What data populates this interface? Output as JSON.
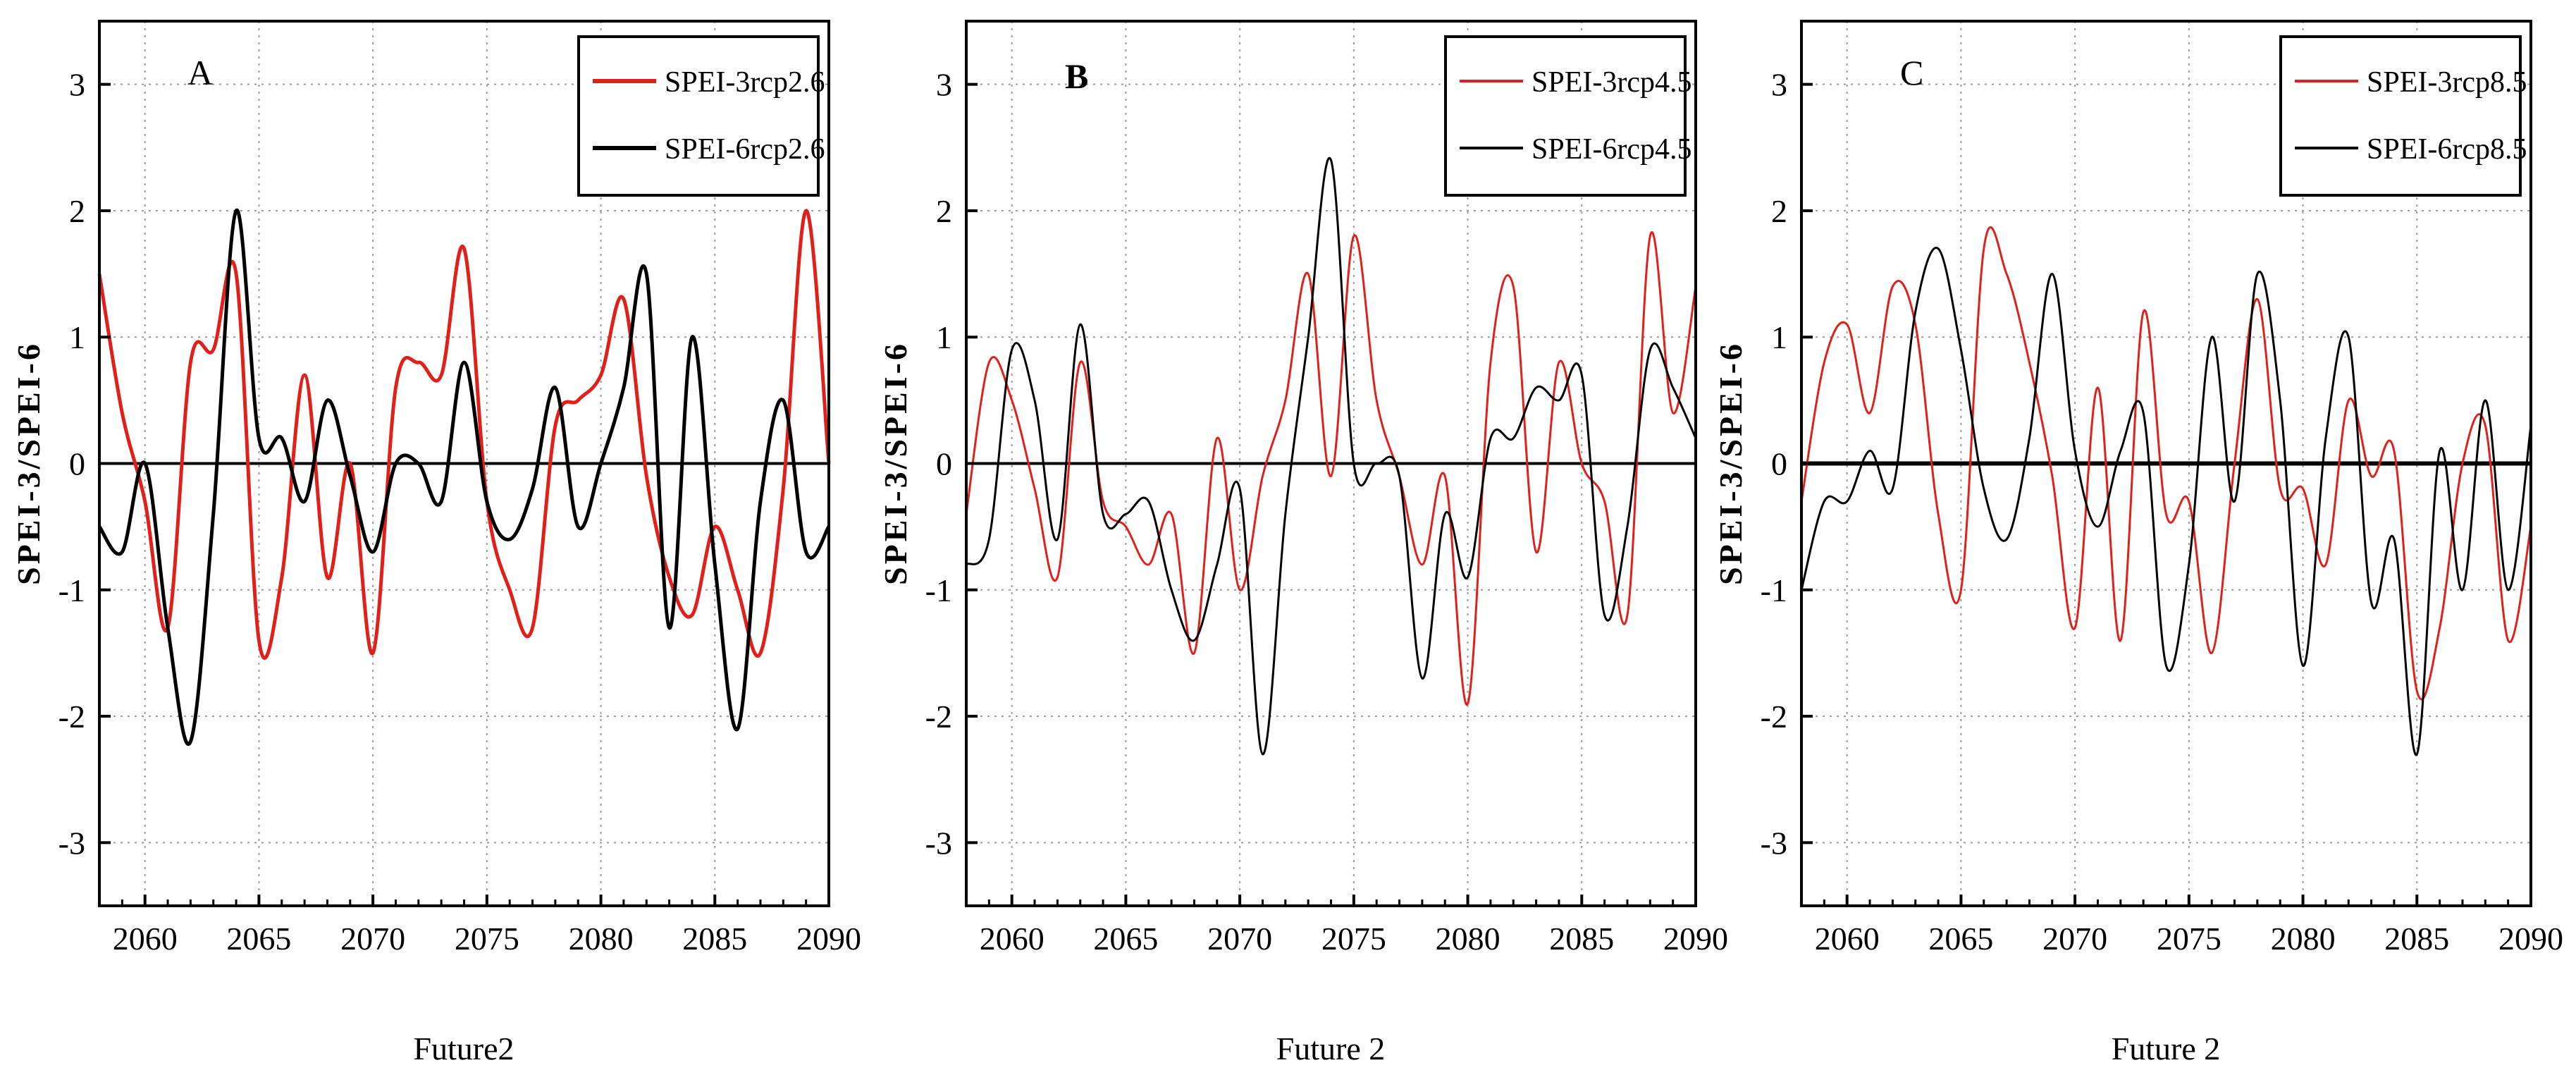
{
  "chart_data": [
    {
      "type": "line",
      "panel_label": "A",
      "xlabel": "Future2",
      "ylabel": "SPEI-3/SPEI-6",
      "xlim": [
        2058,
        2090
      ],
      "ylim": [
        -3.5,
        3.5
      ],
      "xticks": [
        2060,
        2065,
        2070,
        2075,
        2080,
        2085,
        2090
      ],
      "yticks": [
        -3,
        -2,
        -1,
        0,
        1,
        2,
        3
      ],
      "grid": true,
      "legend_position": "top-right",
      "series": [
        {
          "name": "SPEI-3rcp2.6",
          "color": "#e0201a",
          "x": [
            2058,
            2059,
            2060,
            2061,
            2062,
            2063,
            2064,
            2065,
            2066,
            2067,
            2068,
            2069,
            2070,
            2071,
            2072,
            2073,
            2074,
            2075,
            2076,
            2077,
            2078,
            2079,
            2080,
            2081,
            2082,
            2083,
            2084,
            2085,
            2086,
            2087,
            2088,
            2089,
            2090
          ],
          "y": [
            1.5,
            0.4,
            -0.3,
            -1.3,
            0.8,
            0.9,
            1.5,
            -1.4,
            -0.9,
            0.7,
            -0.9,
            0.0,
            -1.5,
            0.6,
            0.8,
            0.7,
            1.7,
            -0.3,
            -1.0,
            -1.3,
            0.3,
            0.5,
            0.7,
            1.3,
            -0.1,
            -0.9,
            -1.2,
            -0.5,
            -1.0,
            -1.5,
            -0.2,
            2.0,
            0.0
          ]
        },
        {
          "name": "SPEI-6rcp2.6",
          "color": "#000000",
          "x": [
            2058,
            2059,
            2060,
            2061,
            2062,
            2063,
            2064,
            2065,
            2066,
            2067,
            2068,
            2069,
            2070,
            2071,
            2072,
            2073,
            2074,
            2075,
            2076,
            2077,
            2078,
            2079,
            2080,
            2081,
            2082,
            2083,
            2084,
            2085,
            2086,
            2087,
            2088,
            2089,
            2090
          ],
          "y": [
            -0.5,
            -0.7,
            0.0,
            -1.3,
            -2.2,
            -0.4,
            2.0,
            0.2,
            0.2,
            -0.3,
            0.5,
            -0.1,
            -0.7,
            0.0,
            0.0,
            -0.3,
            0.8,
            -0.3,
            -0.6,
            -0.2,
            0.6,
            -0.5,
            0.0,
            0.6,
            1.5,
            -1.3,
            1.0,
            -0.8,
            -2.1,
            -0.3,
            0.5,
            -0.7,
            -0.5
          ]
        }
      ]
    },
    {
      "type": "line",
      "panel_label": "B",
      "xlabel": "Future 2",
      "ylabel": "SPEI-3/SPEI-6",
      "xlim": [
        2058,
        2090
      ],
      "ylim": [
        -3.5,
        3.5
      ],
      "xticks": [
        2060,
        2065,
        2070,
        2075,
        2080,
        2085,
        2090
      ],
      "yticks": [
        -3,
        -2,
        -1,
        0,
        1,
        2,
        3
      ],
      "grid": true,
      "legend_position": "top-right",
      "series": [
        {
          "name": "SPEI-3rcp4.5",
          "color": "#e0201a",
          "x": [
            2058,
            2059,
            2060,
            2061,
            2062,
            2063,
            2064,
            2065,
            2066,
            2067,
            2068,
            2069,
            2070,
            2071,
            2072,
            2073,
            2074,
            2075,
            2076,
            2077,
            2078,
            2079,
            2080,
            2081,
            2082,
            2083,
            2084,
            2085,
            2086,
            2087,
            2088,
            2089,
            2090
          ],
          "y": [
            -0.4,
            0.8,
            0.5,
            -0.2,
            -0.9,
            0.8,
            -0.3,
            -0.5,
            -0.8,
            -0.4,
            -1.5,
            0.2,
            -1.0,
            -0.1,
            0.5,
            1.5,
            -0.1,
            1.8,
            0.5,
            -0.1,
            -0.8,
            -0.1,
            -1.9,
            0.8,
            1.4,
            -0.7,
            0.8,
            0.0,
            -0.3,
            -1.2,
            1.8,
            0.4,
            1.4
          ]
        },
        {
          "name": "SPEI-6rcp4.5",
          "color": "#000000",
          "x": [
            2058,
            2059,
            2060,
            2061,
            2062,
            2063,
            2064,
            2065,
            2066,
            2067,
            2068,
            2069,
            2070,
            2071,
            2072,
            2073,
            2074,
            2075,
            2076,
            2077,
            2078,
            2079,
            2080,
            2081,
            2082,
            2083,
            2084,
            2085,
            2086,
            2087,
            2088,
            2089,
            2090
          ],
          "y": [
            -0.8,
            -0.6,
            0.9,
            0.5,
            -0.6,
            1.1,
            -0.4,
            -0.4,
            -0.3,
            -1.0,
            -1.4,
            -0.8,
            -0.2,
            -2.3,
            -0.4,
            1.0,
            2.4,
            0.0,
            0.0,
            -0.1,
            -1.7,
            -0.4,
            -0.9,
            0.2,
            0.2,
            0.6,
            0.5,
            0.7,
            -1.2,
            -0.5,
            0.9,
            0.6,
            0.2
          ]
        }
      ]
    },
    {
      "type": "line",
      "panel_label": "C",
      "xlabel": "Future 2",
      "ylabel": "SPEI-3/SPEI-6",
      "xlim": [
        2058,
        2090
      ],
      "ylim": [
        -3.5,
        3.5
      ],
      "xticks": [
        2060,
        2065,
        2070,
        2075,
        2080,
        2085,
        2090
      ],
      "yticks": [
        -3,
        -2,
        -1,
        0,
        1,
        2,
        3
      ],
      "grid": true,
      "legend_position": "top-right",
      "series": [
        {
          "name": "SPEI-3rcp8.5",
          "color": "#e0201a",
          "x": [
            2058,
            2059,
            2060,
            2061,
            2062,
            2063,
            2064,
            2065,
            2066,
            2067,
            2068,
            2069,
            2070,
            2071,
            2072,
            2073,
            2074,
            2075,
            2076,
            2077,
            2078,
            2079,
            2080,
            2081,
            2082,
            2083,
            2084,
            2085,
            2086,
            2087,
            2088,
            2089,
            2090
          ],
          "y": [
            -0.3,
            0.8,
            1.1,
            0.4,
            1.4,
            1.1,
            -0.4,
            -1.0,
            1.7,
            1.5,
            0.8,
            -0.1,
            -1.3,
            0.6,
            -1.4,
            1.2,
            -0.4,
            -0.3,
            -1.5,
            0.0,
            1.3,
            -0.2,
            -0.2,
            -0.8,
            0.5,
            -0.1,
            0.1,
            -1.8,
            -1.3,
            0.0,
            0.3,
            -1.4,
            -0.5
          ]
        },
        {
          "name": "SPEI-6rcp8.5",
          "color": "#000000",
          "x": [
            2058,
            2059,
            2060,
            2061,
            2062,
            2063,
            2064,
            2065,
            2066,
            2067,
            2068,
            2069,
            2070,
            2071,
            2072,
            2073,
            2074,
            2075,
            2076,
            2077,
            2078,
            2079,
            2080,
            2081,
            2082,
            2083,
            2084,
            2085,
            2086,
            2087,
            2088,
            2089,
            2090
          ],
          "y": [
            -1.0,
            -0.3,
            -0.3,
            0.1,
            -0.2,
            1.2,
            1.7,
            0.9,
            -0.2,
            -0.6,
            0.2,
            1.5,
            0.1,
            -0.5,
            0.1,
            0.4,
            -1.6,
            -0.8,
            1.0,
            -0.3,
            1.5,
            0.5,
            -1.6,
            0.2,
            1.0,
            -1.1,
            -0.6,
            -2.3,
            0.1,
            -1.0,
            0.5,
            -1.0,
            0.3
          ]
        }
      ]
    }
  ]
}
